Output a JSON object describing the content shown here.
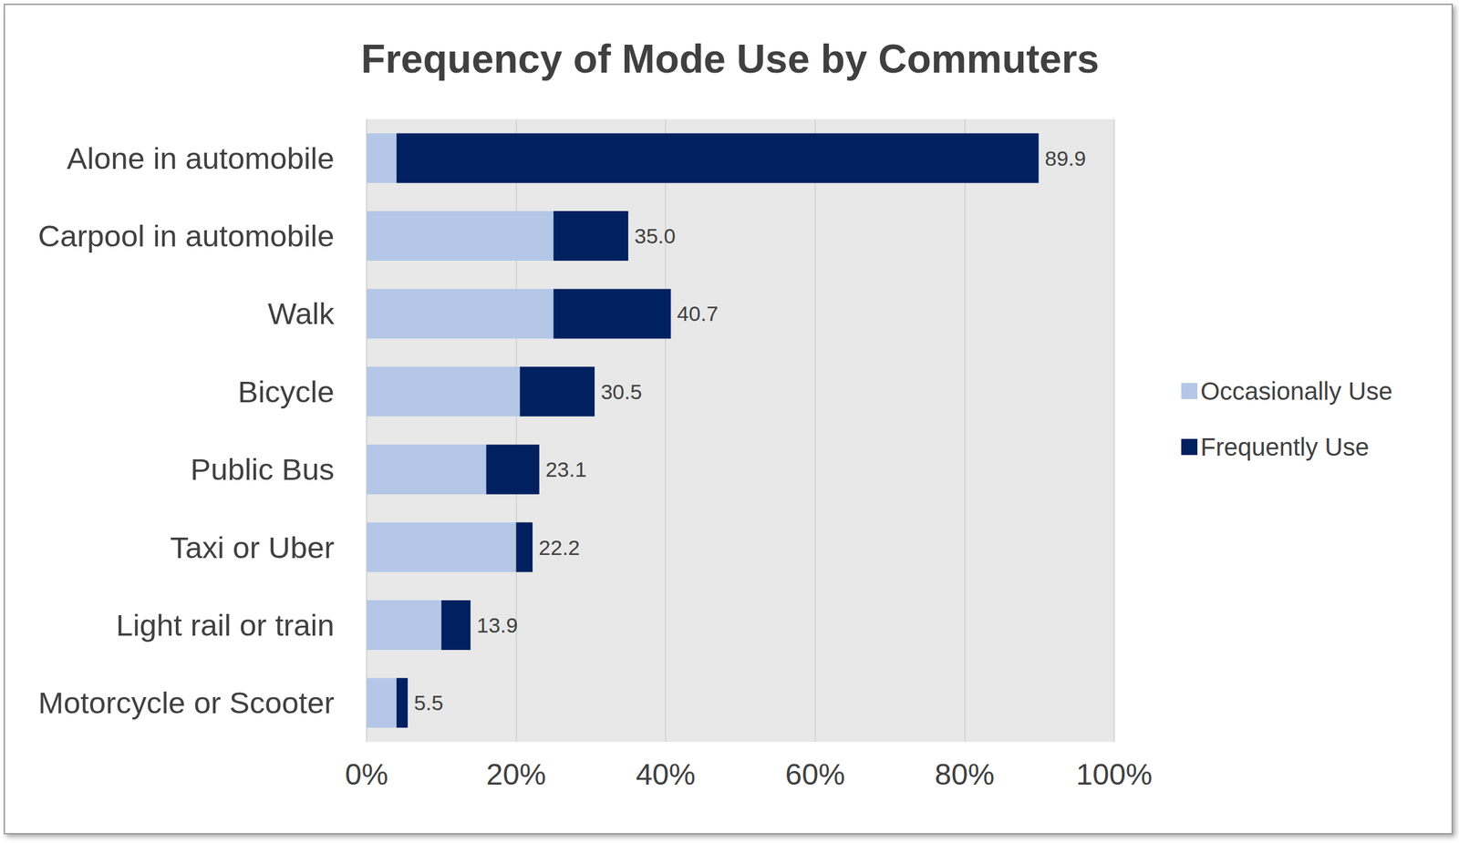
{
  "chart_data": {
    "type": "bar",
    "title": "Frequency of Mode Use by Commuters",
    "orientation": "horizontal",
    "stacked": true,
    "grid": true,
    "legend": "right",
    "data_labels": true,
    "categories": [
      "Alone in automobile",
      "Carpool in automobile",
      "Walk",
      "Bicycle",
      "Public Bus",
      "Taxi or Uber",
      "Light rail or train",
      "Motorcycle or Scooter"
    ],
    "series": [
      {
        "name": "Occasionally Use",
        "color": "#b4c7e7",
        "values": [
          4.0,
          25.0,
          25.0,
          20.5,
          16.0,
          20.0,
          10.0,
          4.0
        ]
      },
      {
        "name": "Frequently Use",
        "color": "#002060",
        "values": [
          85.9,
          10.0,
          15.7,
          10.0,
          7.1,
          2.2,
          3.9,
          1.5
        ]
      }
    ],
    "total_labels": [
      "89.9",
      "35.0",
      "40.7",
      "30.5",
      "23.1",
      "22.2",
      "13.9",
      "5.5"
    ],
    "xlim": [
      0,
      100
    ],
    "xticks": [
      {
        "value": 0,
        "label": "0%"
      },
      {
        "value": 20,
        "label": "20%"
      },
      {
        "value": 40,
        "label": "40%"
      },
      {
        "value": 60,
        "label": "60%"
      },
      {
        "value": 80,
        "label": "80%"
      },
      {
        "value": 100,
        "label": "100%"
      }
    ]
  }
}
